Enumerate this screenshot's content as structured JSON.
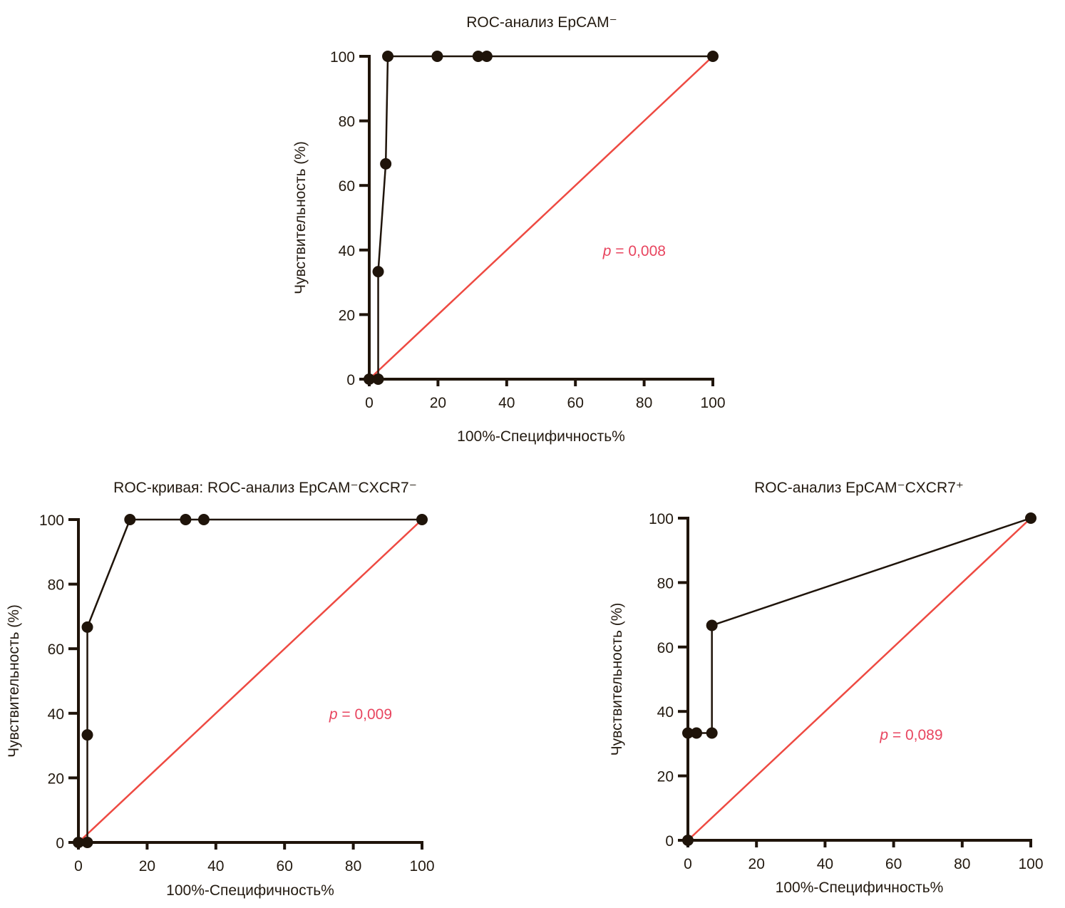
{
  "chart_data": [
    {
      "id": "top",
      "type": "line",
      "title": "ROC-анализ EpCAM⁻",
      "xlabel": "100%-Специфичность%",
      "ylabel": "Чувствительность (%)",
      "xlim": [
        0,
        100
      ],
      "ylim": [
        0,
        100
      ],
      "xticks": [
        "0",
        "20",
        "40",
        "60",
        "80",
        "100"
      ],
      "yticks": [
        "0",
        "20",
        "40",
        "60",
        "80",
        "100"
      ],
      "annotation": {
        "prefix": "p",
        "text": " = 0,008",
        "x": 68,
        "y": 40
      },
      "reference_line": {
        "from": [
          0,
          0
        ],
        "to": [
          100,
          100
        ],
        "color": "#ee4a42"
      },
      "series": [
        {
          "name": "ROC",
          "x": [
            0,
            2.6,
            2.6,
            4.8,
            5.4,
            19.8,
            31.7,
            34.2,
            100
          ],
          "y": [
            0,
            0,
            33.3,
            66.7,
            100,
            100,
            100,
            100,
            100
          ]
        }
      ]
    },
    {
      "id": "bottom-left",
      "type": "line",
      "title": "ROC-кривая: ROC-анализ EpCAM⁻CXCR7⁻",
      "xlabel": "100%-Специфичность%",
      "ylabel": "Чувствительность (%)",
      "xlim": [
        0,
        100
      ],
      "ylim": [
        0,
        100
      ],
      "xticks": [
        "0",
        "20",
        "40",
        "60",
        "80",
        "100"
      ],
      "yticks": [
        "0",
        "20",
        "40",
        "60",
        "80",
        "100"
      ],
      "annotation": {
        "prefix": "p",
        "text": " = 0,009",
        "x": 73,
        "y": 40
      },
      "reference_line": {
        "from": [
          0,
          0
        ],
        "to": [
          100,
          100
        ],
        "color": "#ee4a42"
      },
      "series": [
        {
          "name": "ROC",
          "x": [
            0,
            2.6,
            2.6,
            2.6,
            15,
            31.2,
            36.5,
            100
          ],
          "y": [
            0,
            0,
            33.3,
            66.7,
            100,
            100,
            100,
            100
          ]
        }
      ]
    },
    {
      "id": "bottom-right",
      "type": "line",
      "title": "ROC-анализ EpCAM⁻CXCR7⁺",
      "xlabel": "100%-Специфичность%",
      "ylabel": "Чувствительность (%)",
      "xlim": [
        0,
        100
      ],
      "ylim": [
        0,
        100
      ],
      "xticks": [
        "0",
        "20",
        "40",
        "60",
        "80",
        "100"
      ],
      "yticks": [
        "0",
        "20",
        "40",
        "60",
        "80",
        "100"
      ],
      "annotation": {
        "prefix": "p",
        "text": " = 0,089",
        "x": 56,
        "y": 33
      },
      "reference_line": {
        "from": [
          0,
          0
        ],
        "to": [
          100,
          100
        ],
        "color": "#ee4a42"
      },
      "series": [
        {
          "name": "ROC",
          "x": [
            0,
            0,
            2.5,
            7,
            7,
            100
          ],
          "y": [
            0,
            33.3,
            33.3,
            33.3,
            66.7,
            100
          ]
        }
      ]
    }
  ]
}
